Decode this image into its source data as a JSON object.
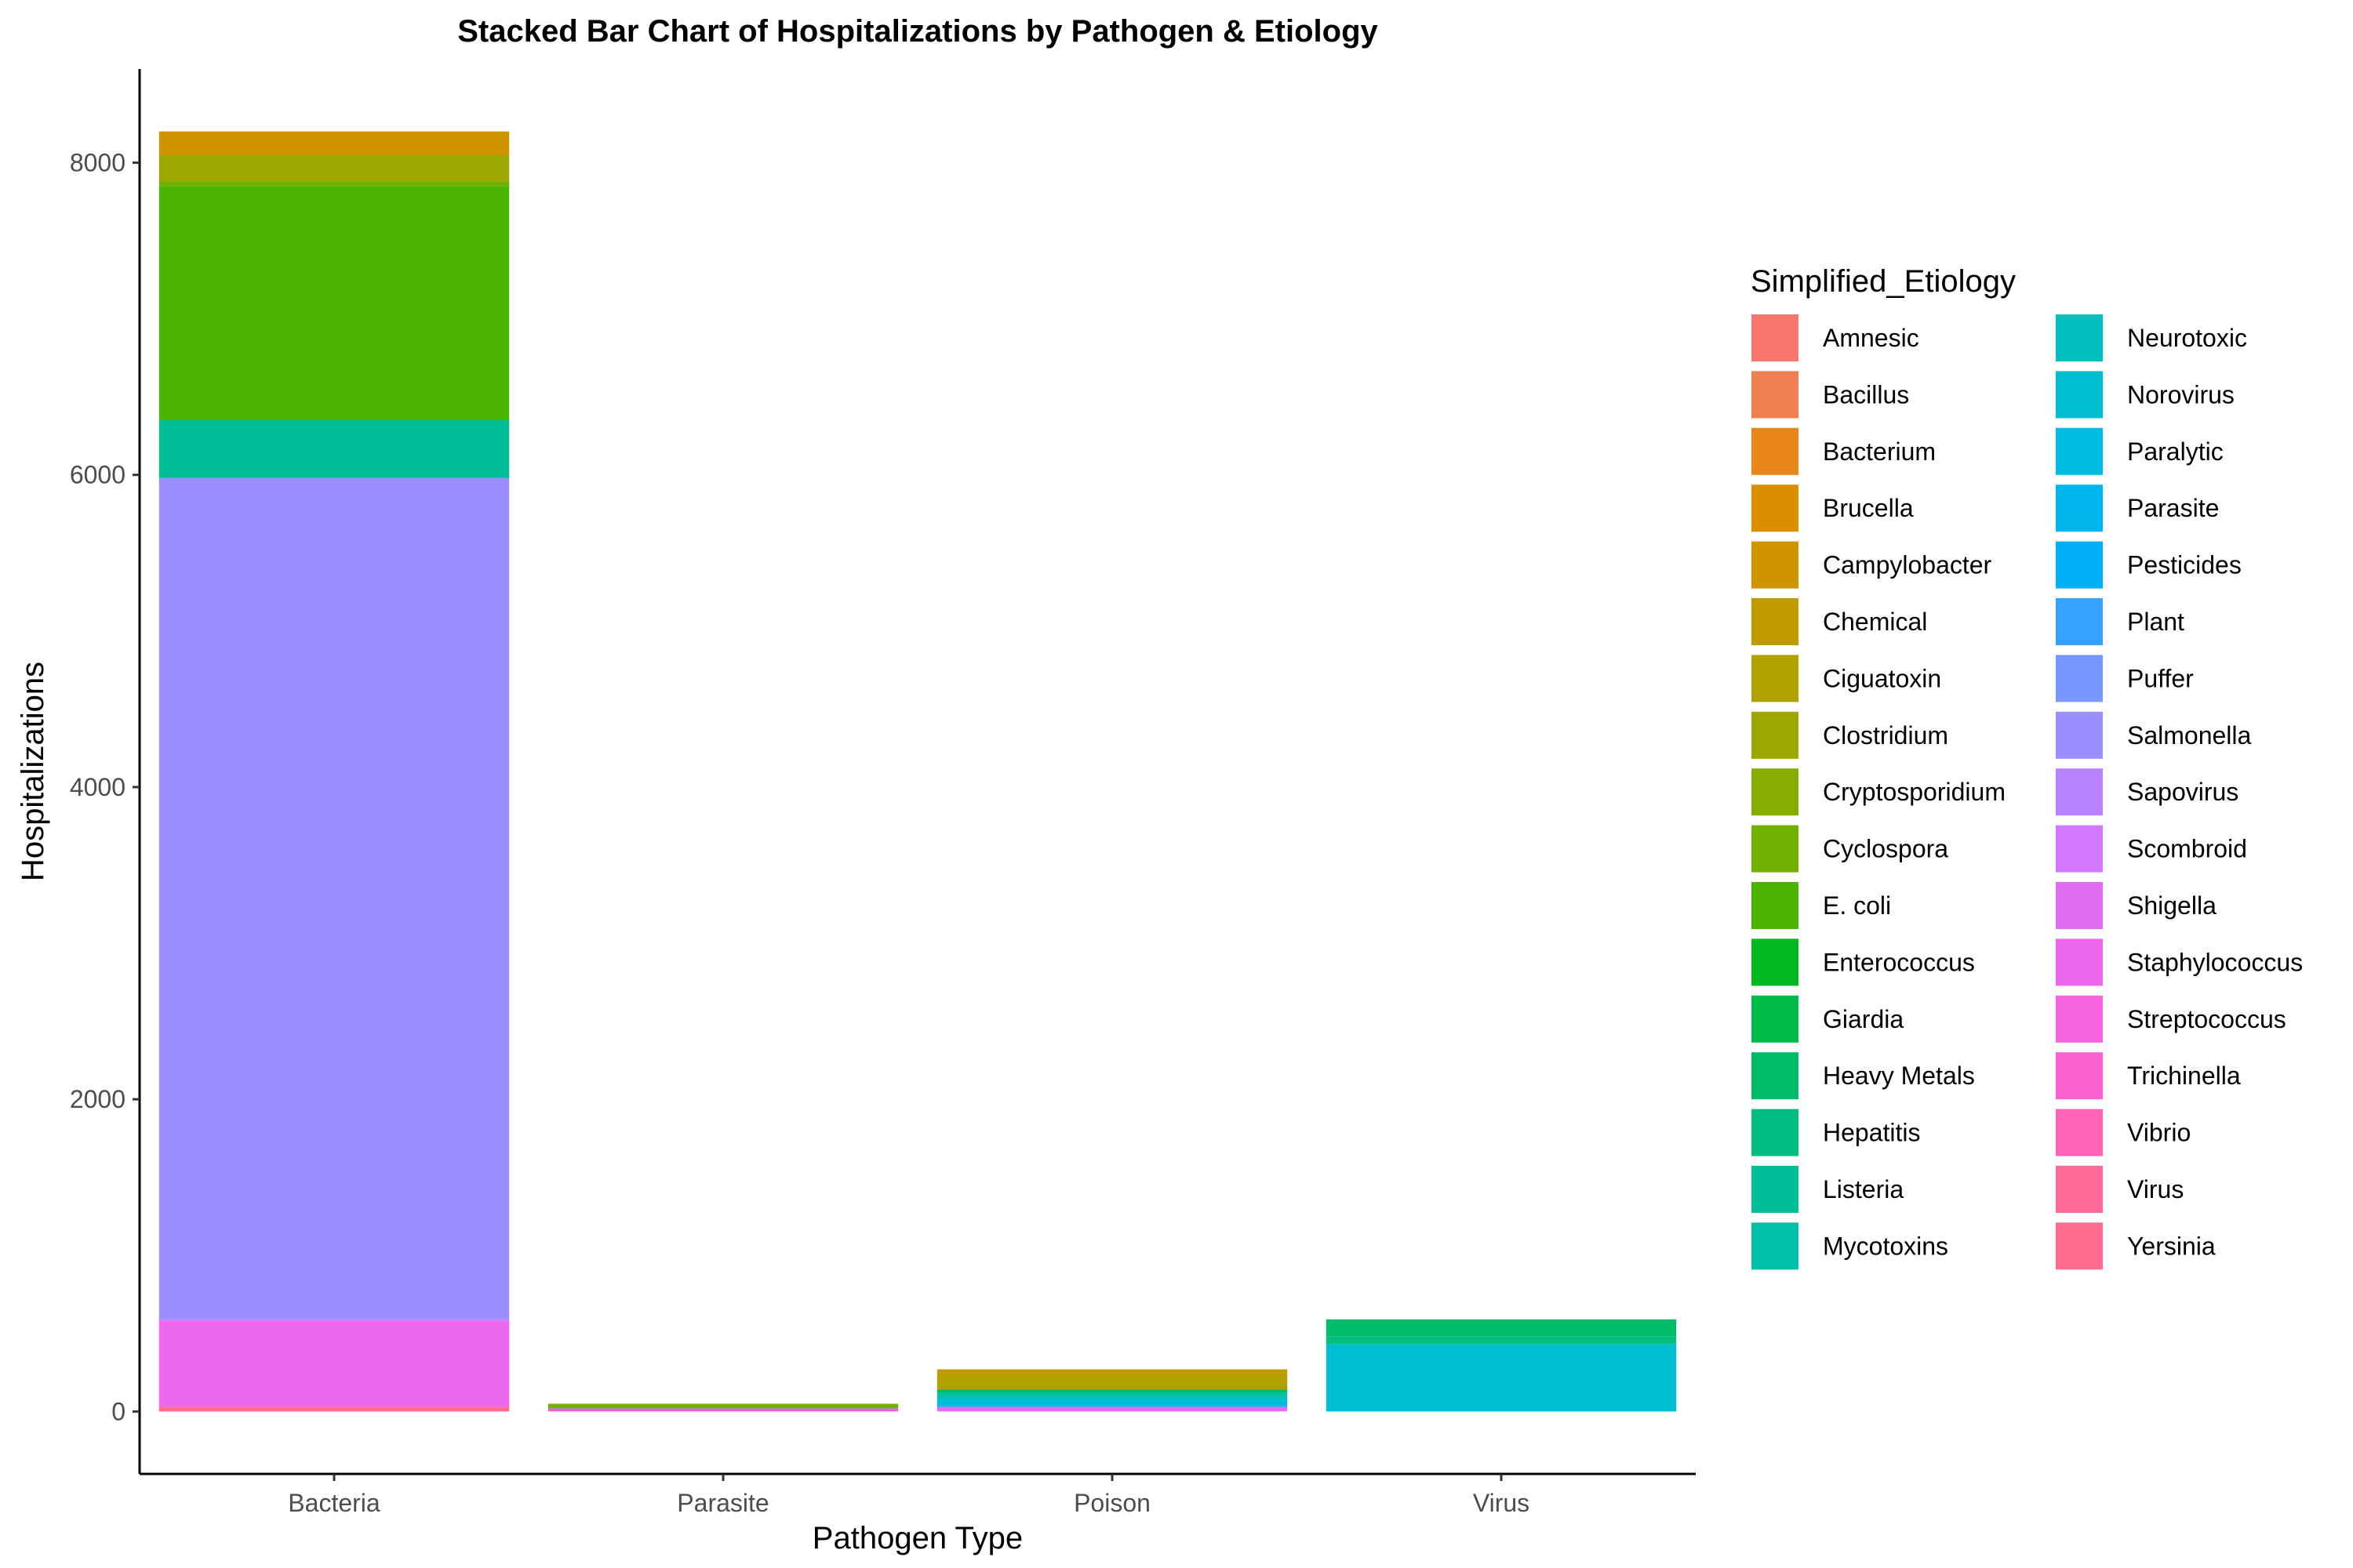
{
  "chart_data": {
    "type": "bar",
    "stacked": true,
    "title": "Stacked Bar Chart of Hospitalizations by Pathogen & Etiology",
    "xlabel": "Pathogen Type",
    "ylabel": "Hospitalizations",
    "categories": [
      "Bacteria",
      "Parasite",
      "Poison",
      "Virus"
    ],
    "ylim": [
      -400,
      8600
    ],
    "yticks": [
      0,
      2000,
      4000,
      6000,
      8000
    ],
    "grid": false,
    "legend": {
      "title": "Simplified_Etiology",
      "placement": "right",
      "columns": 2
    },
    "series": [
      {
        "name": "Amnesic",
        "color": "#F8766D",
        "values": [
          0,
          0,
          0,
          0
        ]
      },
      {
        "name": "Bacillus",
        "color": "#F07F4F",
        "values": [
          0,
          0,
          0,
          0
        ]
      },
      {
        "name": "Bacterium",
        "color": "#E7861B",
        "values": [
          0,
          0,
          0,
          0
        ]
      },
      {
        "name": "Brucella",
        "color": "#DB8E00",
        "values": [
          0,
          0,
          0,
          0
        ]
      },
      {
        "name": "Campylobacter",
        "color": "#CF9400",
        "values": [
          0,
          0,
          0,
          0
        ]
      },
      {
        "name": "Chemical",
        "color": "#C09B00",
        "values": [
          0,
          0,
          0,
          0
        ]
      },
      {
        "name": "Ciguatoxin",
        "color": "#B0A100",
        "values": [
          0,
          0,
          0,
          0
        ]
      },
      {
        "name": "Clostridium",
        "color": "#9DA700",
        "values": [
          0,
          0,
          0,
          0
        ]
      },
      {
        "name": "Cryptosporidium",
        "color": "#88AC00",
        "values": [
          0,
          0,
          0,
          0
        ]
      },
      {
        "name": "Cyclospora",
        "color": "#6FB000",
        "values": [
          0,
          0,
          0,
          0
        ]
      },
      {
        "name": "E. coli",
        "color": "#4BB400",
        "values": [
          0,
          0,
          0,
          0
        ]
      },
      {
        "name": "Enterococcus",
        "color": "#00B81F",
        "values": [
          0,
          0,
          0,
          0
        ]
      },
      {
        "name": "Giardia",
        "color": "#00BA4A",
        "values": [
          0,
          0,
          0,
          0
        ]
      },
      {
        "name": "Heavy Metals",
        "color": "#00BC68",
        "values": [
          0,
          0,
          0,
          0
        ]
      },
      {
        "name": "Hepatitis",
        "color": "#00BD81",
        "values": [
          0,
          0,
          0,
          0
        ]
      },
      {
        "name": "Listeria",
        "color": "#00BF97",
        "values": [
          0,
          0,
          0,
          0
        ]
      },
      {
        "name": "Mycotoxins",
        "color": "#00C0AB",
        "values": [
          0,
          0,
          0,
          0
        ]
      },
      {
        "name": "Neurotoxic",
        "color": "#00C0BE",
        "values": [
          0,
          0,
          0,
          0
        ]
      },
      {
        "name": "Norovirus",
        "color": "#00BED0",
        "values": [
          0,
          0,
          0,
          0
        ]
      },
      {
        "name": "Paralytic",
        "color": "#00BBE0",
        "values": [
          0,
          0,
          0,
          0
        ]
      },
      {
        "name": "Parasite",
        "color": "#00B6EE",
        "values": [
          0,
          0,
          0,
          0
        ]
      },
      {
        "name": "Pesticides",
        "color": "#00B0F6",
        "values": [
          0,
          0,
          0,
          0
        ]
      },
      {
        "name": "Plant",
        "color": "#35A2FF",
        "values": [
          0,
          0,
          0,
          0
        ]
      },
      {
        "name": "Puffer",
        "color": "#7997FF",
        "values": [
          0,
          0,
          0,
          0
        ]
      },
      {
        "name": "Salmonella",
        "color": "#9B8EFF",
        "values": [
          0,
          0,
          0,
          0
        ]
      },
      {
        "name": "Sapovirus",
        "color": "#B983FF",
        "values": [
          0,
          0,
          0,
          0
        ]
      },
      {
        "name": "Scombroid",
        "color": "#D078FF",
        "values": [
          0,
          0,
          0,
          0
        ]
      },
      {
        "name": "Shigella",
        "color": "#E06EF4",
        "values": [
          0,
          0,
          0,
          0
        ]
      },
      {
        "name": "Staphylococcus",
        "color": "#ED68ED",
        "values": [
          0,
          0,
          0,
          0
        ]
      },
      {
        "name": "Streptococcus",
        "color": "#F863DF",
        "values": [
          0,
          0,
          0,
          0
        ]
      },
      {
        "name": "Trichinella",
        "color": "#FD61D1",
        "values": [
          0,
          0,
          0,
          0
        ]
      },
      {
        "name": "Vibrio",
        "color": "#FF63B6",
        "values": [
          0,
          0,
          0,
          0
        ]
      },
      {
        "name": "Virus",
        "color": "#FF6A98",
        "values": [
          0,
          0,
          0,
          0
        ]
      },
      {
        "name": "Yersinia",
        "color": "#FF6C90",
        "values": [
          0,
          0,
          0,
          0
        ]
      }
    ],
    "stacks": {
      "Bacteria": [
        {
          "etiology": "Yersinia",
          "value": 30
        },
        {
          "etiology": "Staphylococcus",
          "value": 550
        },
        {
          "etiology": "Scombroid",
          "value": 10
        },
        {
          "etiology": "Salmonella",
          "value": 5390
        },
        {
          "etiology": "Listeria",
          "value": 370
        },
        {
          "etiology": "E. coli",
          "value": 1500
        },
        {
          "etiology": "Cyclospora",
          "value": 30
        },
        {
          "etiology": "Clostridium",
          "value": 170
        },
        {
          "etiology": "Campylobacter",
          "value": 150
        }
      ],
      "Parasite": [
        {
          "etiology": "Trichinella",
          "value": 20
        },
        {
          "etiology": "Giardia",
          "value": 5
        },
        {
          "etiology": "Cyclospora",
          "value": 20
        },
        {
          "etiology": "Cryptosporidium",
          "value": 5
        }
      ],
      "Poison": [
        {
          "etiology": "Shigella",
          "value": 30
        },
        {
          "etiology": "Paralytic",
          "value": 40
        },
        {
          "etiology": "Neurotoxic",
          "value": 20
        },
        {
          "etiology": "Mycotoxins",
          "value": 30
        },
        {
          "etiology": "Heavy Metals",
          "value": 20
        },
        {
          "etiology": "Ciguatoxin",
          "value": 90
        },
        {
          "etiology": "Chemical",
          "value": 40
        }
      ],
      "Virus": [
        {
          "etiology": "Norovirus",
          "value": 430
        },
        {
          "etiology": "Hepatitis",
          "value": 50
        },
        {
          "etiology": "Heavy Metals",
          "value": 110
        }
      ]
    }
  }
}
